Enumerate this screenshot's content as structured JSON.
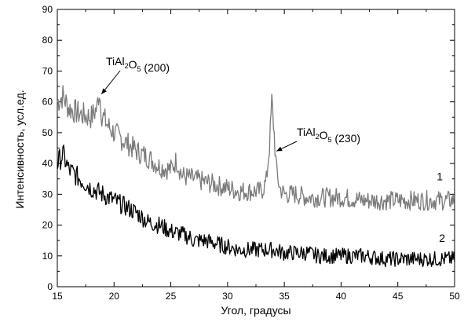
{
  "chart_data": {
    "type": "line",
    "xlabel": "Угол, градусы",
    "ylabel": "Интенсивность, усл.ед.",
    "xlim": [
      15,
      50
    ],
    "ylim": [
      0,
      90
    ],
    "x_ticks": [
      "15",
      "20",
      "25",
      "30",
      "35",
      "40",
      "45",
      "50"
    ],
    "y_ticks": [
      "0",
      "10",
      "20",
      "30",
      "40",
      "50",
      "60",
      "70",
      "80",
      "90"
    ],
    "grid": false,
    "series": [
      {
        "name": "1",
        "color": "#7a7a7a",
        "x": [
          15,
          15.5,
          16,
          17,
          18,
          18.5,
          18.7,
          18.9,
          19.5,
          20,
          21,
          22,
          23,
          24,
          25,
          25.5,
          26,
          27,
          28,
          29,
          30,
          31,
          32,
          33,
          33.4,
          33.7,
          33.9,
          34.1,
          34.3,
          34.6,
          35,
          36,
          37,
          38,
          40,
          42,
          44,
          46,
          48,
          50
        ],
        "values": [
          60,
          62,
          58,
          56,
          55,
          58,
          64,
          56,
          52,
          50,
          47,
          44,
          42,
          39,
          38,
          41,
          36,
          35,
          34,
          33,
          32,
          31,
          31,
          31,
          34,
          46,
          60,
          50,
          38,
          32,
          30,
          30,
          29,
          29,
          29,
          28,
          28,
          28,
          28,
          28
        ]
      },
      {
        "name": "2",
        "color": "#000000",
        "x": [
          15,
          15.5,
          16,
          17,
          18,
          19,
          20,
          21,
          22,
          23,
          24,
          25,
          26,
          26.7,
          27,
          28,
          29,
          30,
          31,
          32,
          33,
          34,
          35,
          36,
          37,
          38,
          40,
          42,
          44,
          46,
          48,
          50
        ],
        "values": [
          40,
          43,
          38,
          35,
          32,
          30,
          28,
          26,
          24,
          21,
          20,
          18,
          17,
          16,
          15,
          15,
          14,
          13,
          12,
          12,
          12,
          12,
          11,
          11,
          11,
          10,
          10,
          10,
          9,
          9,
          9,
          9
        ]
      }
    ],
    "annotations": [
      {
        "base": "TiAl",
        "sub1": "2",
        "mid": "O",
        "sub2": "5",
        "suffix": " (200)",
        "x": 18.7,
        "y": 64
      },
      {
        "base": "TiAl",
        "sub1": "2",
        "mid": "O",
        "sub2": "5",
        "suffix": " (230)",
        "x": 34.0,
        "y": 48
      }
    ]
  }
}
